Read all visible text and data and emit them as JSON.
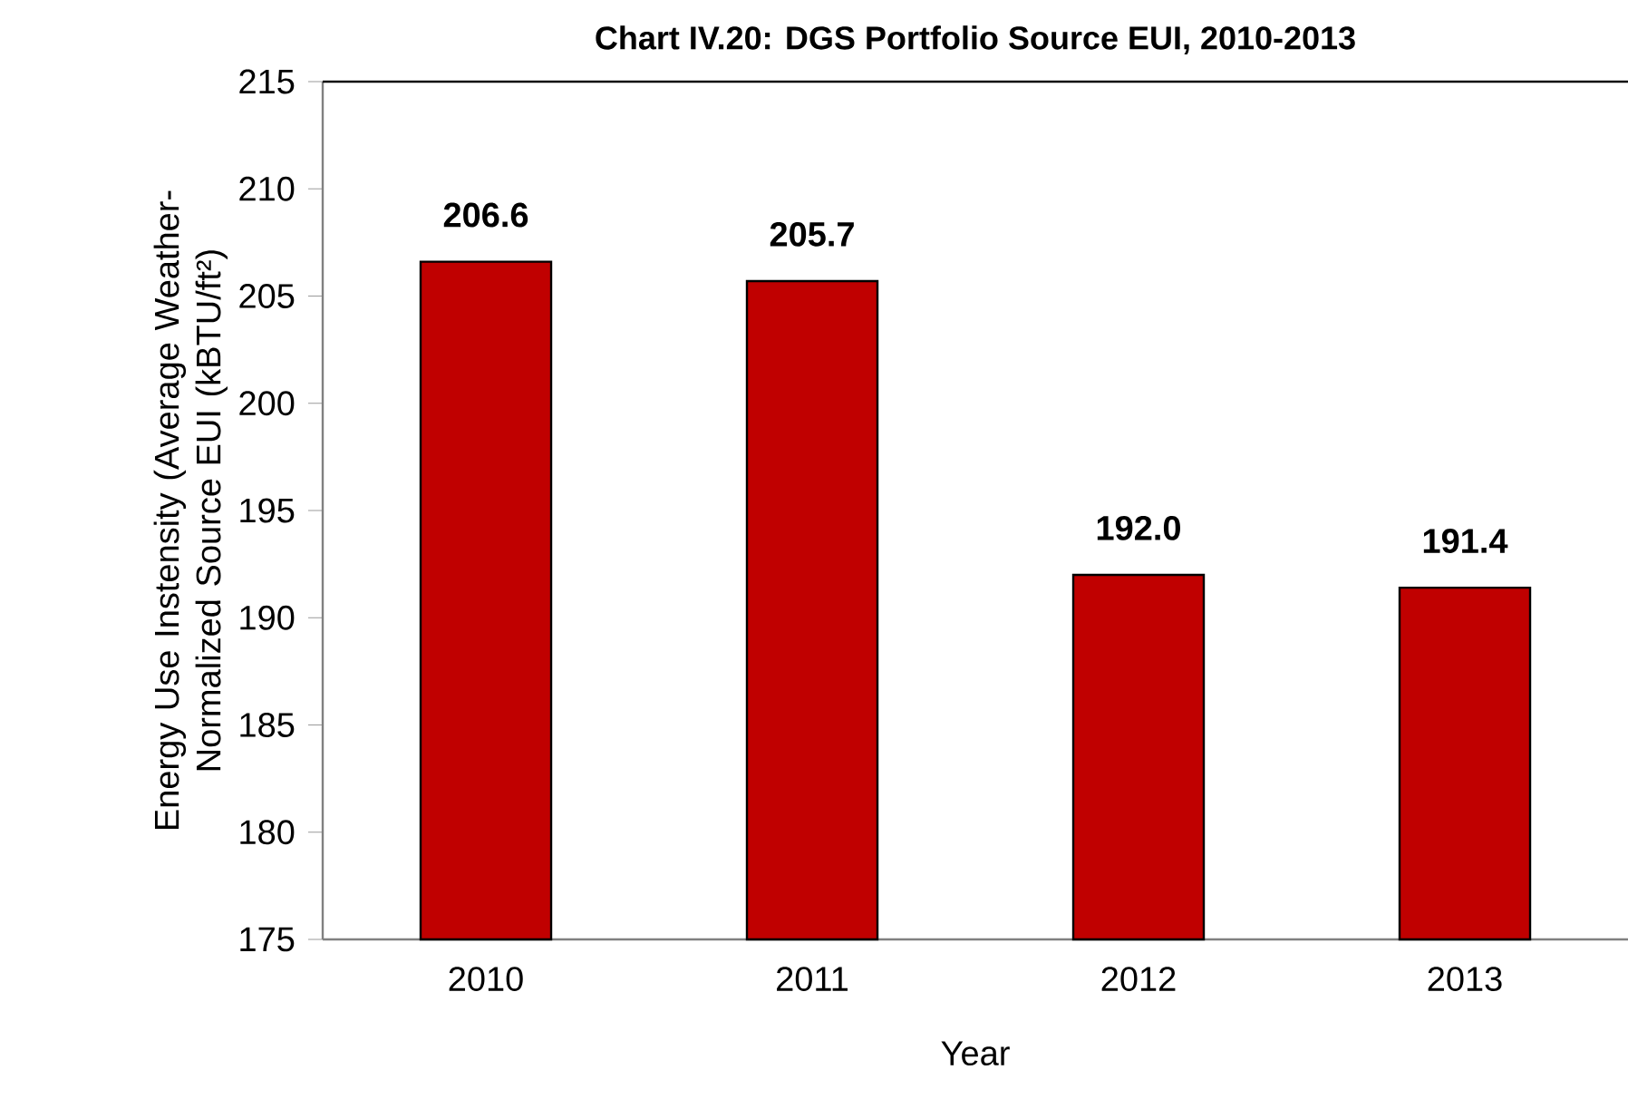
{
  "chart_data": {
    "type": "bar",
    "title": "Chart IV.20: DGS Portfolio Source EUI, 2010-2013",
    "xlabel": "Year",
    "ylabel": "Energy Use Instensity (Average Weather-Normalized Source EUI (kBTU/ft²)",
    "categories": [
      "2010",
      "2011",
      "2012",
      "2013"
    ],
    "values": [
      206.6,
      205.7,
      192.0,
      191.4
    ],
    "value_labels": [
      "206.6",
      "205.7",
      "192.0",
      "191.4"
    ],
    "color": "#c00000",
    "ylim": [
      175,
      215
    ],
    "yticks": [
      175,
      180,
      185,
      190,
      195,
      200,
      205,
      210,
      215
    ],
    "grid": false
  }
}
